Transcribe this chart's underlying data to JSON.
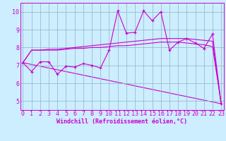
{
  "bg_color": "#cceeff",
  "plot_bg_color": "#cceeff",
  "line_color": "#cc00cc",
  "grid_color": "#99bbcc",
  "spine_color": "#cc00cc",
  "xlabel": "Windchill (Refroidissement éolien,°C)",
  "xlabel_fontsize": 6.0,
  "tick_fontsize": 6.0,
  "ylabel_ticks": [
    5,
    6,
    7,
    8,
    9,
    10
  ],
  "xlabel_ticks": [
    0,
    1,
    2,
    3,
    4,
    5,
    6,
    7,
    8,
    9,
    10,
    11,
    12,
    13,
    14,
    15,
    16,
    17,
    18,
    19,
    20,
    21,
    22,
    23
  ],
  "xmin": -0.3,
  "xmax": 23.3,
  "ymin": 4.5,
  "ymax": 10.5,
  "line1_x": [
    0,
    1,
    2,
    3,
    4,
    5,
    6,
    7,
    8,
    9,
    10,
    11,
    12,
    13,
    14,
    15,
    16,
    17,
    18,
    19,
    20,
    21,
    22,
    23
  ],
  "line1_y": [
    7.15,
    6.65,
    7.2,
    7.2,
    6.5,
    6.95,
    6.9,
    7.1,
    7.0,
    6.85,
    7.85,
    10.05,
    8.8,
    8.85,
    10.05,
    9.5,
    10.0,
    7.85,
    8.3,
    8.5,
    8.25,
    7.95,
    8.75,
    4.85
  ],
  "line2_x": [
    0,
    1,
    2,
    3,
    4,
    5,
    6,
    7,
    8,
    9,
    10,
    11,
    12,
    13,
    14,
    15,
    16,
    17,
    18,
    19,
    20,
    21,
    22,
    23
  ],
  "line2_y": [
    7.15,
    7.85,
    7.85,
    7.9,
    7.9,
    7.95,
    8.0,
    8.05,
    8.1,
    8.15,
    8.2,
    8.25,
    8.3,
    8.35,
    8.4,
    8.45,
    8.5,
    8.5,
    8.5,
    8.5,
    8.45,
    8.4,
    8.35,
    4.85
  ],
  "line3_x": [
    0,
    1,
    2,
    3,
    4,
    5,
    6,
    7,
    8,
    9,
    10,
    11,
    12,
    13,
    14,
    15,
    16,
    17,
    18,
    19,
    20,
    21,
    22,
    23
  ],
  "line3_y": [
    7.15,
    7.85,
    7.85,
    7.85,
    7.85,
    7.9,
    7.95,
    7.95,
    8.0,
    8.0,
    8.05,
    8.1,
    8.1,
    8.15,
    8.2,
    8.25,
    8.3,
    8.3,
    8.3,
    8.25,
    8.2,
    8.15,
    8.05,
    4.85
  ],
  "line4_x": [
    0,
    23
  ],
  "line4_y": [
    7.15,
    4.85
  ]
}
